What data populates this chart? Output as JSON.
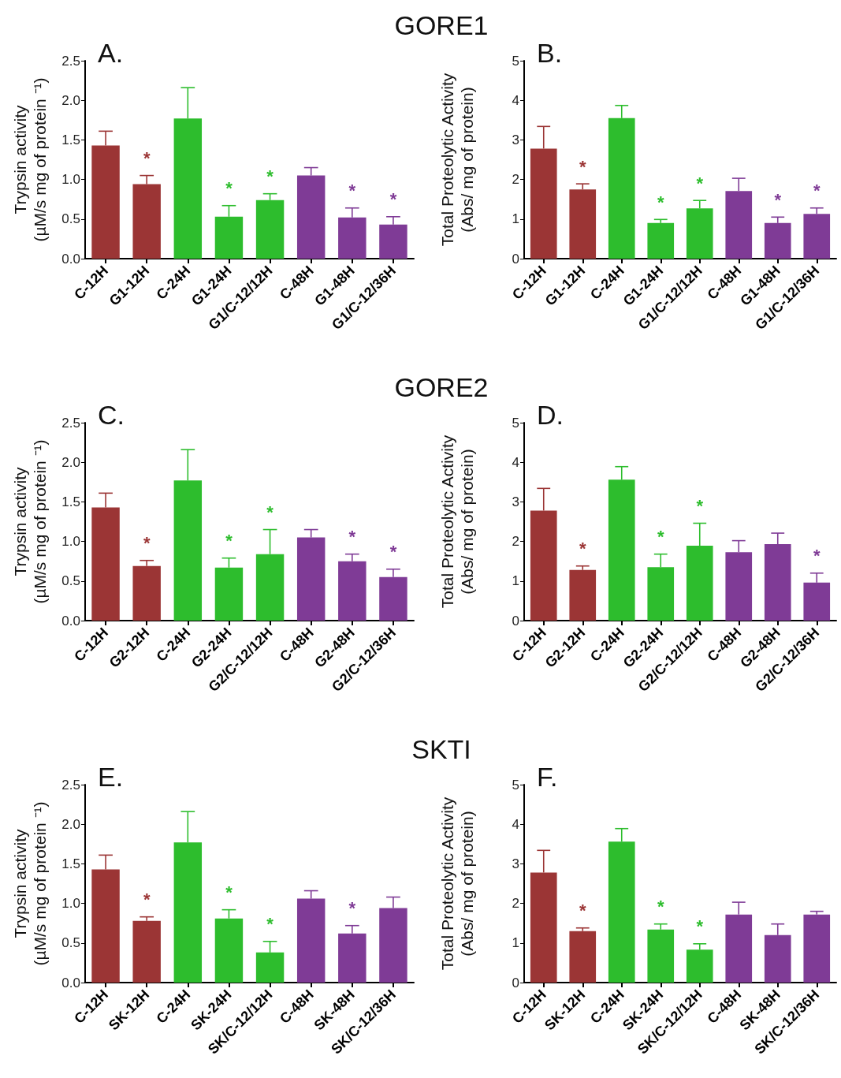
{
  "chart_data": [
    {
      "type": "bar",
      "title": "GORE1",
      "annotations": [
        "A."
      ],
      "ylabel": "Trypsin activity\n(µM/s mg of protein ⁻¹)",
      "categories": [
        "C-12H",
        "G1-12H",
        "C-24H",
        "G1-24H",
        "G1/C-12/12H",
        "C-48H",
        "G1-48H",
        "G1/C-12/36H"
      ],
      "values": [
        1.43,
        0.94,
        1.77,
        0.53,
        0.74,
        1.05,
        0.52,
        0.43
      ],
      "value_labels": [
        null,
        "*",
        null,
        "*",
        "*",
        null,
        "*",
        "*"
      ],
      "errors": [
        [
          1.43,
          1.61
        ],
        [
          0.94,
          1.05
        ],
        [
          1.77,
          2.16
        ],
        [
          0.53,
          0.67
        ],
        [
          0.74,
          0.82
        ],
        [
          1.05,
          1.15
        ],
        [
          0.52,
          0.64
        ],
        [
          0.43,
          0.53
        ]
      ],
      "colors": [
        "#9b3535",
        "#9b3535",
        "#2dbd2d",
        "#2dbd2d",
        "#2dbd2d",
        "#7f3b96",
        "#7f3b96",
        "#7f3b96"
      ],
      "ylim": [
        0,
        2.5
      ],
      "yticks": [
        {
          "value": 0,
          "label": "0.0"
        },
        0.5,
        {
          "value": 1,
          "label": "1.0"
        },
        1.5,
        {
          "value": 2,
          "label": "2.0"
        },
        2.5
      ]
    },
    {
      "type": "bar",
      "annotations": [
        "B."
      ],
      "ylabel": "Total Proteolytic Activity\n(Abs/ mg of protein)",
      "categories": [
        "C-12H",
        "G1-12H",
        "C-24H",
        "G1-24H",
        "G1/C-12/12H",
        "C-48H",
        "G1-48H",
        "G1/C-12/36H"
      ],
      "values": [
        2.78,
        1.75,
        3.55,
        0.9,
        1.27,
        1.71,
        0.9,
        1.13
      ],
      "value_labels": [
        null,
        "*",
        null,
        "*",
        "*",
        null,
        "*",
        "*"
      ],
      "errors": [
        [
          2.78,
          3.34
        ],
        [
          1.75,
          1.89
        ],
        [
          3.55,
          3.87
        ],
        [
          0.9,
          0.99
        ],
        [
          1.27,
          1.47
        ],
        [
          1.71,
          2.03
        ],
        [
          0.9,
          1.05
        ],
        [
          1.13,
          1.28
        ]
      ],
      "colors": [
        "#9b3535",
        "#9b3535",
        "#2dbd2d",
        "#2dbd2d",
        "#2dbd2d",
        "#7f3b96",
        "#7f3b96",
        "#7f3b96"
      ],
      "ylim": [
        0,
        5
      ],
      "yticks": [
        0,
        1,
        2,
        3,
        4,
        5
      ]
    },
    {
      "type": "bar",
      "title": "GORE2",
      "annotations": [
        "C."
      ],
      "ylabel": "Trypsin activity\n(µM/s mg of protein ⁻¹)",
      "categories": [
        "C-12H",
        "G2-12H",
        "C-24H",
        "G2-24H",
        "G2/C-12/12H",
        "C-48H",
        "G2-48H",
        "G2/C-12/36H"
      ],
      "values": [
        1.43,
        0.69,
        1.77,
        0.67,
        0.84,
        1.05,
        0.75,
        0.55
      ],
      "value_labels": [
        null,
        "*",
        null,
        "*",
        "*",
        null,
        "*",
        "*"
      ],
      "errors": [
        [
          1.43,
          1.61
        ],
        [
          0.69,
          0.76
        ],
        [
          1.77,
          2.16
        ],
        [
          0.67,
          0.79
        ],
        [
          0.84,
          1.15
        ],
        [
          1.05,
          1.15
        ],
        [
          0.75,
          0.84
        ],
        [
          0.55,
          0.65
        ]
      ],
      "colors": [
        "#9b3535",
        "#9b3535",
        "#2dbd2d",
        "#2dbd2d",
        "#2dbd2d",
        "#7f3b96",
        "#7f3b96",
        "#7f3b96"
      ],
      "ylim": [
        0,
        2.5
      ],
      "yticks": [
        {
          "value": 0,
          "label": "0.0"
        },
        0.5,
        {
          "value": 1,
          "label": "1.0"
        },
        1.5,
        {
          "value": 2,
          "label": "2.0"
        },
        2.5
      ]
    },
    {
      "type": "bar",
      "annotations": [
        "D."
      ],
      "ylabel": "Total Proteolytic Activity\n(Abs/ mg of protein)",
      "categories": [
        "C-12H",
        "G2-12H",
        "C-24H",
        "G2-24H",
        "G2/C-12/12H",
        "C-48H",
        "G2-48H",
        "G2/C-12/36H"
      ],
      "values": [
        2.78,
        1.28,
        3.56,
        1.35,
        1.89,
        1.73,
        1.93,
        0.96
      ],
      "value_labels": [
        null,
        "*",
        null,
        "*",
        "*",
        null,
        null,
        "*"
      ],
      "errors": [
        [
          2.78,
          3.34
        ],
        [
          1.28,
          1.38
        ],
        [
          3.56,
          3.89
        ],
        [
          1.35,
          1.68
        ],
        [
          1.89,
          2.46
        ],
        [
          1.73,
          2.02
        ],
        [
          1.93,
          2.21
        ],
        [
          0.96,
          1.2
        ]
      ],
      "colors": [
        "#9b3535",
        "#9b3535",
        "#2dbd2d",
        "#2dbd2d",
        "#2dbd2d",
        "#7f3b96",
        "#7f3b96",
        "#7f3b96"
      ],
      "ylim": [
        0,
        5
      ],
      "yticks": [
        0,
        1,
        2,
        3,
        4,
        5
      ]
    },
    {
      "type": "bar",
      "title": "SKTI",
      "annotations": [
        "E."
      ],
      "ylabel": "Trypsin activity\n(µM/s mg of protein ⁻¹)",
      "categories": [
        "C-12H",
        "SK-12H",
        "C-24H",
        "SK-24H",
        "SK/C-12/12H",
        "C-48H",
        "SK-48H",
        "SK/C-12/36H"
      ],
      "values": [
        1.43,
        0.78,
        1.77,
        0.81,
        0.38,
        1.06,
        0.62,
        0.94
      ],
      "value_labels": [
        null,
        "*",
        null,
        "*",
        "*",
        null,
        "*",
        null
      ],
      "errors": [
        [
          1.43,
          1.61
        ],
        [
          0.78,
          0.83
        ],
        [
          1.77,
          2.16
        ],
        [
          0.81,
          0.92
        ],
        [
          0.38,
          0.52
        ],
        [
          1.06,
          1.16
        ],
        [
          0.62,
          0.72
        ],
        [
          0.94,
          1.08
        ]
      ],
      "colors": [
        "#9b3535",
        "#9b3535",
        "#2dbd2d",
        "#2dbd2d",
        "#2dbd2d",
        "#7f3b96",
        "#7f3b96",
        "#7f3b96"
      ],
      "ylim": [
        0,
        2.5
      ],
      "yticks": [
        {
          "value": 0,
          "label": "0.0"
        },
        0.5,
        {
          "value": 1,
          "label": "1.0"
        },
        1.5,
        {
          "value": 2,
          "label": "2.0"
        },
        2.5
      ]
    },
    {
      "type": "bar",
      "annotations": [
        "F."
      ],
      "ylabel": "Total Proteolytic Activity\n(Abs/ mg of protein)",
      "categories": [
        "C-12H",
        "SK-12H",
        "C-24H",
        "SK-24H",
        "SK/C-12/12H",
        "C-48H",
        "SK-48H",
        "SK/C-12/36H"
      ],
      "values": [
        2.78,
        1.3,
        3.56,
        1.34,
        0.83,
        1.72,
        1.2,
        1.72
      ],
      "value_labels": [
        null,
        "*",
        null,
        "*",
        "*",
        null,
        null,
        null
      ],
      "errors": [
        [
          2.78,
          3.34
        ],
        [
          1.3,
          1.38
        ],
        [
          3.56,
          3.89
        ],
        [
          1.34,
          1.48
        ],
        [
          0.83,
          0.98
        ],
        [
          1.72,
          2.03
        ],
        [
          1.2,
          1.48
        ],
        [
          1.72,
          1.8
        ]
      ],
      "colors": [
        "#9b3535",
        "#9b3535",
        "#2dbd2d",
        "#2dbd2d",
        "#2dbd2d",
        "#7f3b96",
        "#7f3b96",
        "#7f3b96"
      ],
      "ylim": [
        0,
        5
      ],
      "yticks": [
        0,
        1,
        2,
        3,
        4,
        5
      ]
    }
  ]
}
